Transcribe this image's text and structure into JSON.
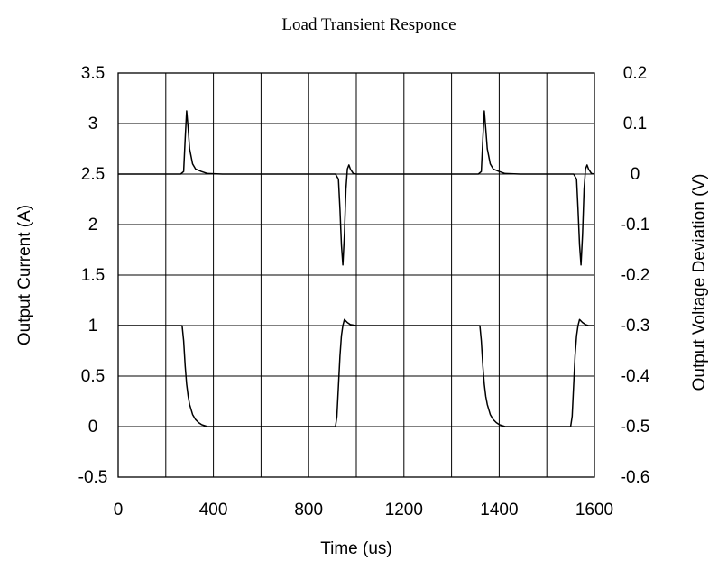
{
  "chart_data": {
    "type": "line",
    "title": "Load Transient Responce",
    "xlabel": "Time (us)",
    "ylabel_left": "Output Current (A)",
    "ylabel_right": "Output Voltage Deviation (V)",
    "xlim": [
      0,
      1600
    ],
    "ylim_left": [
      -0.5,
      3.5
    ],
    "ylim_right": [
      -0.6,
      0.2
    ],
    "x_ticks": [
      "0",
      "400",
      "800",
      "1200",
      "1400",
      "1600"
    ],
    "y_left_ticks": [
      "3.5",
      "3",
      "2.5",
      "2",
      "1.5",
      "1",
      "0.5",
      "0",
      "-0.5"
    ],
    "y_right_ticks": [
      "0.2",
      "0.1",
      "0",
      "-0.1",
      "-0.2",
      "-0.3",
      "-0.4",
      "-0.5",
      "-0.6"
    ],
    "grid": true,
    "series": [
      {
        "axis": "right",
        "x": [
          0,
          100,
          210,
          220,
          225,
          230,
          235,
          240,
          250,
          260,
          280,
          300,
          350,
          400,
          500,
          600,
          700,
          730,
          740,
          745,
          750,
          755,
          760,
          765,
          770,
          775,
          780,
          790,
          800,
          850,
          900,
          1000,
          1100,
          1210,
          1220,
          1225,
          1230,
          1235,
          1240,
          1250,
          1260,
          1280,
          1300,
          1350,
          1400,
          1450,
          1500,
          1530,
          1540,
          1545,
          1550,
          1555,
          1560,
          1565,
          1570,
          1575,
          1580,
          1590,
          1600
        ],
        "values": [
          0,
          0,
          0,
          0.005,
          0.07,
          0.125,
          0.09,
          0.05,
          0.02,
          0.01,
          0.005,
          0.001,
          0.0,
          0.0,
          0.0,
          0.0,
          0.0,
          0.0,
          -0.01,
          -0.07,
          -0.14,
          -0.18,
          -0.12,
          -0.03,
          0.01,
          0.018,
          0.01,
          0.001,
          0.0,
          0.0,
          0.0,
          0.0,
          0.0,
          0.0,
          0.005,
          0.07,
          0.125,
          0.09,
          0.05,
          0.02,
          0.01,
          0.005,
          0.001,
          0.0,
          0.0,
          0.0,
          0.0,
          0.0,
          -0.01,
          -0.07,
          -0.14,
          -0.18,
          -0.12,
          -0.03,
          0.01,
          0.018,
          0.01,
          0.001,
          0.0
        ]
      },
      {
        "axis": "left",
        "x": [
          0,
          100,
          200,
          215,
          220,
          225,
          230,
          235,
          240,
          250,
          260,
          270,
          280,
          300,
          350,
          400,
          500,
          600,
          700,
          730,
          735,
          740,
          745,
          750,
          755,
          760,
          770,
          780,
          800,
          900,
          1000,
          1100,
          1200,
          1215,
          1220,
          1225,
          1230,
          1235,
          1240,
          1250,
          1260,
          1270,
          1280,
          1300,
          1350,
          1400,
          1450,
          1500,
          1520,
          1525,
          1530,
          1535,
          1540,
          1545,
          1550,
          1560,
          1570,
          1580,
          1600
        ],
        "values": [
          1,
          1,
          1,
          1,
          0.85,
          0.6,
          0.42,
          0.3,
          0.22,
          0.12,
          0.07,
          0.04,
          0.02,
          0.0,
          0.0,
          0.0,
          0.0,
          0.0,
          0.0,
          0.0,
          0.1,
          0.4,
          0.7,
          0.9,
          1.0,
          1.06,
          1.03,
          1.01,
          1.0,
          1.0,
          1.0,
          1.0,
          1.0,
          1.0,
          0.85,
          0.6,
          0.42,
          0.3,
          0.22,
          0.12,
          0.07,
          0.04,
          0.02,
          0.0,
          0.0,
          0.0,
          0.0,
          0.0,
          0.0,
          0.1,
          0.4,
          0.7,
          0.9,
          1.0,
          1.06,
          1.03,
          1.01,
          1.0,
          1.0
        ]
      }
    ]
  }
}
